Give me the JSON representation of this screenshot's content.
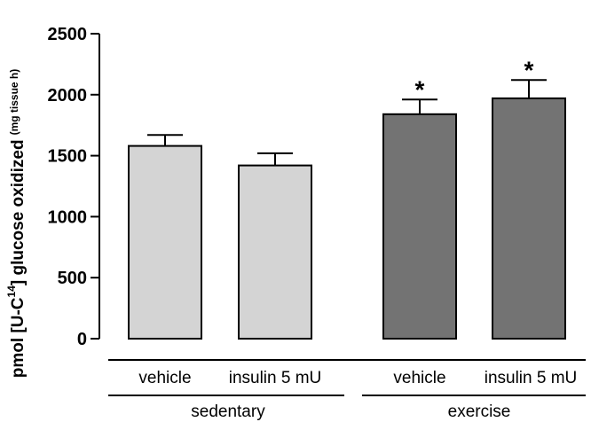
{
  "chart_data": {
    "type": "bar",
    "ylabel": {
      "main": "pmol [U-C",
      "sup": "14",
      "rest": "] glucose oxidized",
      "unit": "(mg tissue h)"
    },
    "ylim": [
      0,
      2500
    ],
    "yticks": [
      0,
      500,
      1000,
      1500,
      2000,
      2500
    ],
    "groups": [
      {
        "label": "sedentary",
        "color": "#d4d4d4",
        "bars": [
          {
            "category": "vehicle",
            "value": 1580,
            "error": 90,
            "significance": ""
          },
          {
            "category": "insulin  5 mU",
            "value": 1420,
            "error": 100,
            "significance": ""
          }
        ]
      },
      {
        "label": "exercise",
        "color": "#737373",
        "bars": [
          {
            "category": "vehicle",
            "value": 1840,
            "error": 120,
            "significance": "*"
          },
          {
            "category": "insulin 5 mU",
            "value": 1970,
            "error": 150,
            "significance": "*"
          }
        ]
      }
    ],
    "grid": false,
    "legend": "none"
  }
}
